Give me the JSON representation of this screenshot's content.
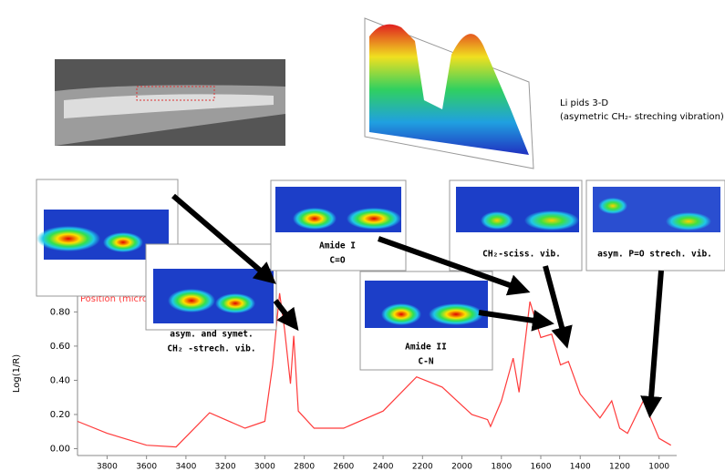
{
  "chart_data": {
    "type": "line",
    "ylabel": "Log(1/R)",
    "x": [
      3950,
      3800,
      3600,
      3450,
      3280,
      3100,
      3000,
      2960,
      2925,
      2900,
      2870,
      2853,
      2830,
      2750,
      2600,
      2400,
      2230,
      2100,
      1950,
      1870,
      1855,
      1800,
      1740,
      1710,
      1655,
      1600,
      1545,
      1500,
      1460,
      1400,
      1300,
      1240,
      1200,
      1160,
      1080,
      1000,
      940
    ],
    "values": [
      0.16,
      0.09,
      0.02,
      0.01,
      0.21,
      0.12,
      0.16,
      0.49,
      0.91,
      0.7,
      0.38,
      0.66,
      0.22,
      0.12,
      0.12,
      0.22,
      0.42,
      0.36,
      0.2,
      0.17,
      0.13,
      0.28,
      0.53,
      0.33,
      0.86,
      0.65,
      0.67,
      0.49,
      0.51,
      0.32,
      0.18,
      0.28,
      0.12,
      0.09,
      0.28,
      0.06,
      0.02
    ],
    "color": "#ff3b3b",
    "xlim": [
      3950,
      920
    ],
    "ylim": [
      -0.04,
      0.93
    ],
    "xticks": [
      3800,
      3600,
      3400,
      3200,
      3000,
      2800,
      2600,
      2400,
      2200,
      2000,
      1800,
      1600,
      1400,
      1200,
      1000
    ],
    "yticks": [
      {
        "value": 0,
        "label": "0.00"
      },
      {
        "value": 0.2,
        "label": "0.20"
      },
      {
        "value": 0.4,
        "label": "0.40"
      },
      {
        "value": 0.6,
        "label": "0.60"
      },
      {
        "value": 0.8,
        "label": "0.80"
      }
    ],
    "annotations": [
      "Position (micro",
      "asym.  and symet.",
      "CH₂ -strech. vib.",
      "Amide I",
      "C=O",
      "Amide II",
      "C-N",
      "CH₂-sciss. vib.",
      "asym. P=O strech. vib.",
      "Li pids 3-D",
      "(asymetric CH₂- streching vibration)"
    ]
  }
}
